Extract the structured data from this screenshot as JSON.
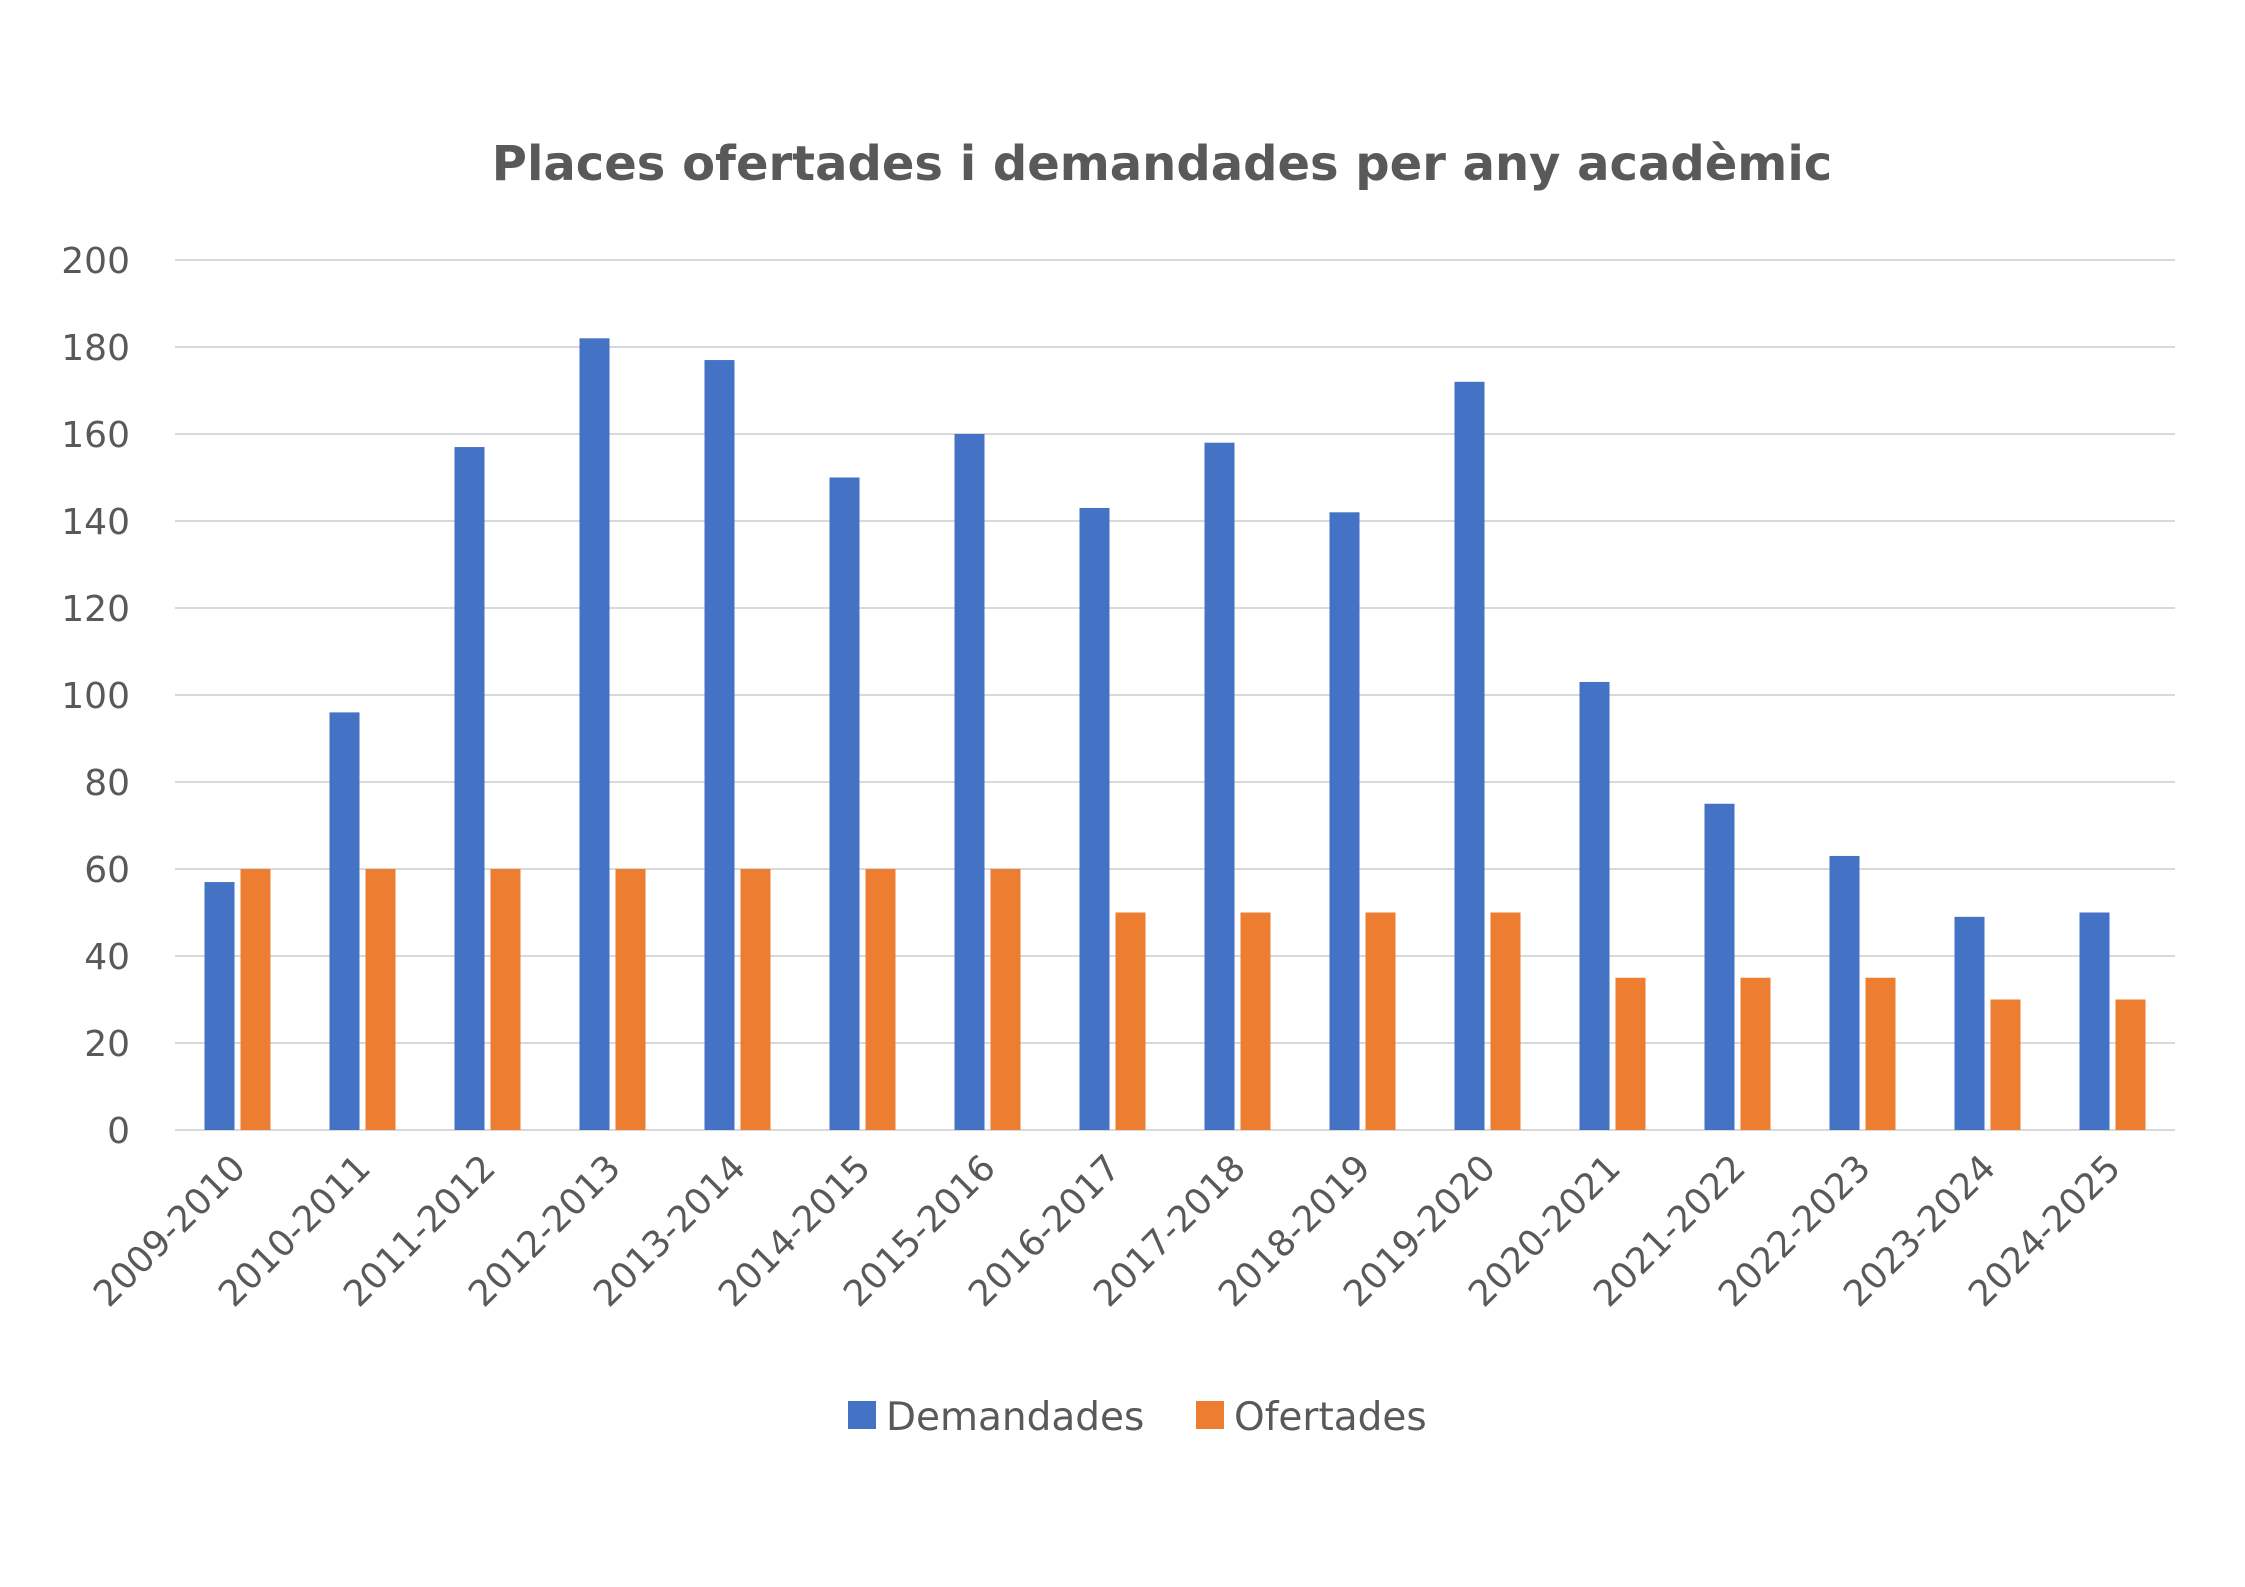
{
  "chart_data": {
    "type": "bar",
    "title": "Places ofertades i demandades per any acadèmic",
    "xlabel": "",
    "ylabel": "",
    "categories": [
      "2009-2010",
      "2010-2011",
      "2011-2012",
      "2012-2013",
      "2013-2014",
      "2014-2015",
      "2015-2016",
      "2016-2017",
      "2017-2018",
      "2018-2019",
      "2019-2020",
      "2020-2021",
      "2021-2022",
      "2022-2023",
      "2023-2024",
      "2024-2025"
    ],
    "series": [
      {
        "name": "Demandades",
        "color": "#4472c4",
        "values": [
          57,
          96,
          157,
          182,
          177,
          150,
          160,
          143,
          158,
          142,
          172,
          103,
          75,
          63,
          49,
          50
        ]
      },
      {
        "name": "Ofertades",
        "color": "#ed7d31",
        "values": [
          60,
          60,
          60,
          60,
          60,
          60,
          60,
          50,
          50,
          50,
          50,
          35,
          35,
          35,
          30,
          30
        ]
      }
    ],
    "ylim": [
      0,
      200
    ],
    "yticks": [
      0,
      20,
      40,
      60,
      80,
      100,
      120,
      140,
      160,
      180,
      200
    ],
    "grid": true,
    "legend_position": "bottom"
  }
}
